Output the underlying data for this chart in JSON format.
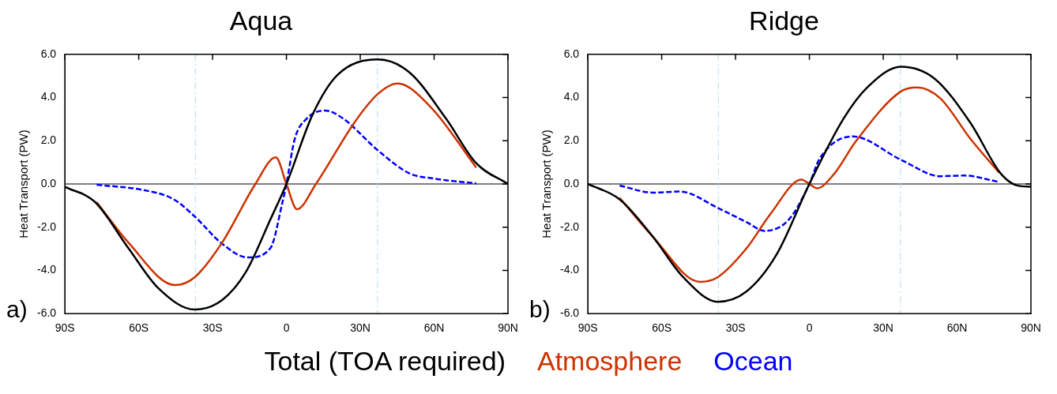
{
  "chart_data": [
    {
      "type": "line",
      "title": "Aqua",
      "ylabel": "Heat Transport (PW)",
      "xlim": [
        -90,
        90
      ],
      "ylim": [
        -6,
        6
      ],
      "xticks": [
        {
          "value": -90,
          "label": "90S"
        },
        {
          "value": -60,
          "label": "60S"
        },
        {
          "value": -30,
          "label": "30S"
        },
        0,
        {
          "value": 30,
          "label": "30N"
        },
        {
          "value": 60,
          "label": "60N"
        },
        {
          "value": 90,
          "label": "90N"
        }
      ],
      "yticks": [
        {
          "value": -6,
          "label": "-6.0"
        },
        {
          "value": -4,
          "label": "-4.0"
        },
        {
          "value": -2,
          "label": "-2.0"
        },
        {
          "value": 0,
          "label": "0.0"
        },
        {
          "value": 2,
          "label": "2.0"
        },
        {
          "value": 4,
          "label": "4.0"
        },
        {
          "value": 6,
          "label": "6.0"
        }
      ],
      "grid": false,
      "legend": "bottom",
      "marker": "none",
      "annotations": [
        "a)"
      ],
      "ref_lines": [
        {
          "axis": "y",
          "value": 0,
          "color": "#000000",
          "line_style": "solid"
        },
        {
          "axis": "x",
          "value": -37,
          "color": "#a8dcf0",
          "line_style": "dashdot"
        },
        {
          "axis": "x",
          "value": 37,
          "color": "#a8dcf0",
          "line_style": "dashdot"
        }
      ],
      "series": [
        {
          "name": "Total (TOA required)",
          "color": "#000000",
          "line_style": "solid",
          "x": [
            -90,
            -77.7,
            -64.2,
            -51.9,
            -37.2,
            -26.1,
            -16.3,
            -6.5,
            0,
            10.7,
            20.6,
            37.1,
            50,
            64.8,
            77.1,
            90
          ],
          "values": [
            -0.13,
            -0.84,
            -2.97,
            -4.84,
            -5.81,
            -5.37,
            -4.04,
            -1.64,
            0,
            3.23,
            5.03,
            5.76,
            5.16,
            3.03,
            0.96,
            0
          ]
        },
        {
          "name": "Atmosphere",
          "color": "#cc3300",
          "line_style": "solid",
          "x": [
            -77.1,
            -64.2,
            -45.2,
            -37.2,
            -26.1,
            -12.6,
            -4.3,
            0,
            4.3,
            12,
            27.9,
            37.1,
            45.1,
            58.6,
            77.1
          ],
          "values": [
            -0.84,
            -2.71,
            -4.68,
            -4.31,
            -2.71,
            0,
            1.23,
            0,
            -1.17,
            0,
            2.89,
            4.16,
            4.65,
            3.56,
            0.76
          ]
        },
        {
          "name": "Ocean",
          "color": "#0000ff",
          "line_style": "dashed",
          "x": [
            -77.1,
            -58.1,
            -45.8,
            -37.2,
            -26.1,
            -15.7,
            -6.5,
            -1.6,
            0,
            3.4,
            8.3,
            15.7,
            23,
            37.1,
            50,
            59.9,
            77.1
          ],
          "values": [
            -0.04,
            -0.28,
            -0.71,
            -1.51,
            -2.77,
            -3.4,
            -2.97,
            -0.84,
            0,
            2.09,
            3.03,
            3.4,
            3.03,
            1.56,
            0.49,
            0.25,
            0.03
          ]
        }
      ]
    },
    {
      "type": "line",
      "title": "Ridge",
      "ylabel": "Heat Transport (PW)",
      "xlim": [
        -90,
        90
      ],
      "ylim": [
        -6,
        6
      ],
      "xticks": [
        {
          "value": -90,
          "label": "90S"
        },
        {
          "value": -60,
          "label": "60S"
        },
        {
          "value": -30,
          "label": "30S"
        },
        0,
        {
          "value": 30,
          "label": "30N"
        },
        {
          "value": 60,
          "label": "60N"
        },
        {
          "value": 90,
          "label": "90N"
        }
      ],
      "yticks": [
        {
          "value": -6,
          "label": "-6.0"
        },
        {
          "value": -4,
          "label": "-4.0"
        },
        {
          "value": -2,
          "label": "-2.0"
        },
        {
          "value": 0,
          "label": "0.0"
        },
        {
          "value": 2,
          "label": "2.0"
        },
        {
          "value": 4,
          "label": "4.0"
        },
        {
          "value": 6,
          "label": "6.0"
        }
      ],
      "grid": false,
      "marker": "none",
      "annotations": [
        "b)"
      ],
      "ref_lines": [
        {
          "axis": "y",
          "value": 0,
          "color": "#000000",
          "line_style": "solid"
        },
        {
          "axis": "x",
          "value": -37,
          "color": "#a8dcf0",
          "line_style": "dashdot"
        },
        {
          "axis": "x",
          "value": 37,
          "color": "#a8dcf0",
          "line_style": "dashdot"
        }
      ],
      "series": [
        {
          "color": "#000000",
          "line_style": "solid",
          "x": [
            -90,
            -77.1,
            -63.6,
            -51.3,
            -37.2,
            -25.5,
            -13.2,
            0,
            13.9,
            23.7,
            37.2,
            50.7,
            65.4,
            77.7,
            84.4,
            90
          ],
          "values": [
            0,
            -0.71,
            -2.44,
            -4.31,
            -5.45,
            -4.97,
            -3.24,
            0,
            3.03,
            4.49,
            5.43,
            4.89,
            2.83,
            0.49,
            -0.07,
            -0.13
          ]
        },
        {
          "color": "#cc3300",
          "line_style": "solid",
          "x": [
            -77.1,
            -63.6,
            -44.5,
            -37.2,
            -25.5,
            -15.7,
            -3.2,
            0,
            3.1,
            10.2,
            18.8,
            37.2,
            43.9,
            53.2,
            65.4,
            77.1
          ],
          "values": [
            -0.64,
            -2.44,
            -4.53,
            -4.31,
            -2.97,
            -1.37,
            0.2,
            0,
            -0.2,
            0.49,
            1.96,
            4.29,
            4.47,
            3.96,
            2.09,
            0.52
          ]
        },
        {
          "color": "#0000ff",
          "line_style": "dashed",
          "x": [
            -77.1,
            -63.6,
            -52.5,
            -37.2,
            -25.5,
            -18.2,
            -8.3,
            0,
            4.1,
            17.6,
            37.2,
            53.2,
            63,
            77.1
          ],
          "values": [
            -0.07,
            -0.4,
            -0.35,
            -1.11,
            -1.77,
            -2.17,
            -1.64,
            0,
            1.16,
            2.2,
            1.12,
            0.36,
            0.39,
            0.09
          ]
        }
      ]
    }
  ]
}
